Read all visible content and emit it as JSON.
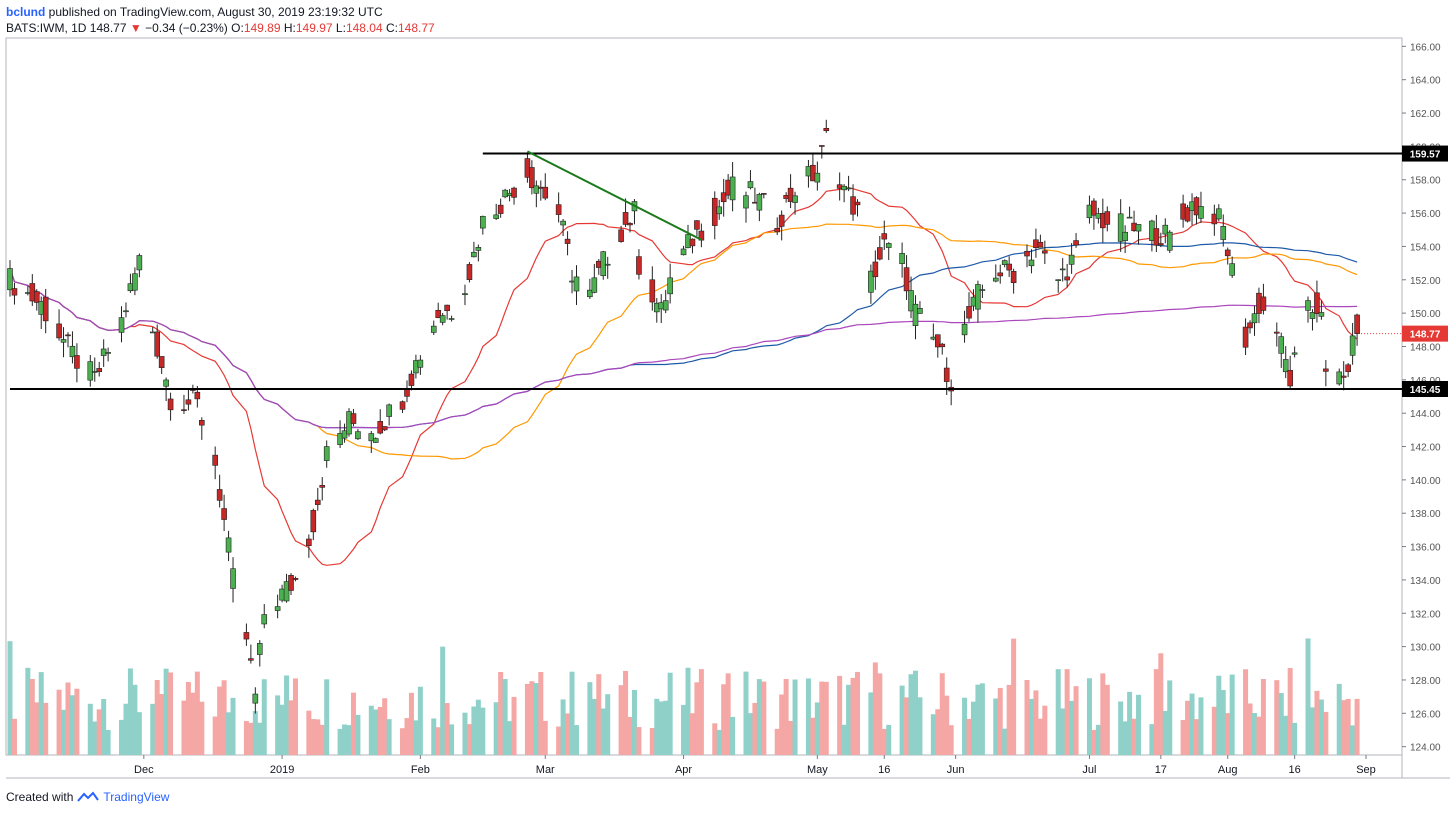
{
  "header": {
    "author": "bclund",
    "published_text": "published on TradingView.com, August 30, 2019 23:19:32 UTC",
    "symbol": "BATS:IWM, 1D",
    "last": "148.77",
    "change": "−0.34 (−0.23%)",
    "open_label": "O:",
    "open": "149.89",
    "high_label": "H:",
    "high": "149.97",
    "low_label": "L:",
    "low": "148.04",
    "close_label": "C:",
    "close": "148.77"
  },
  "footer": {
    "created_with": "Created with",
    "brand": "TradingView"
  },
  "colors": {
    "up": "#4caf50",
    "down": "#c62828",
    "vol_up": "#8fd1c9",
    "vol_down": "#f4a7a4",
    "ma_red": "#e53935",
    "ma_orange": "#ff9800",
    "ma_blue": "#1e5aa8",
    "ma_purple": "#ab47bc",
    "trend_green": "#1b7a1b",
    "last_badge": "#e53935",
    "level_badge": "#000000"
  },
  "chart_data": {
    "type": "candlestick",
    "ylim": [
      123.5,
      166.5
    ],
    "y_ticks": [
      "124.00",
      "126.00",
      "128.00",
      "130.00",
      "132.00",
      "134.00",
      "136.00",
      "138.00",
      "140.00",
      "142.00",
      "144.00",
      "146.00",
      "148.00",
      "150.00",
      "152.00",
      "154.00",
      "156.00",
      "158.00",
      "160.00",
      "162.00",
      "164.00",
      "166.00"
    ],
    "x_ticks": [
      {
        "label": "Dec",
        "date": "2018-12-01"
      },
      {
        "label": "2019",
        "date": "2019-01-01"
      },
      {
        "label": "Feb",
        "date": "2019-02-01"
      },
      {
        "label": "Mar",
        "date": "2019-03-01"
      },
      {
        "label": "Apr",
        "date": "2019-04-01"
      },
      {
        "label": "May",
        "date": "2019-05-01"
      },
      {
        "label": "16",
        "date": "2019-05-16"
      },
      {
        "label": "Jun",
        "date": "2019-06-01"
      },
      {
        "label": "Jul",
        "date": "2019-07-01"
      },
      {
        "label": "17",
        "date": "2019-07-17"
      },
      {
        "label": "Aug",
        "date": "2019-08-01"
      },
      {
        "label": "16",
        "date": "2019-08-16"
      },
      {
        "label": "Sep",
        "date": "2019-09-01"
      }
    ],
    "levels": [
      {
        "name": "resistance",
        "value": 159.57,
        "label": "159.57",
        "from": "2019-02-15"
      },
      {
        "name": "support",
        "value": 145.45,
        "label": "145.45",
        "from": "2018-11-01"
      }
    ],
    "last_price": {
      "value": 148.77,
      "label": "148.77"
    },
    "trendline": {
      "from": {
        "date": "2019-02-25",
        "value": 159.7
      },
      "to": {
        "date": "2019-04-05",
        "value": 154.4
      }
    },
    "closes": [
      {
        "d": "2018-11-01",
        "c": 152.0
      },
      {
        "d": "2018-11-08",
        "c": 150.5
      },
      {
        "d": "2018-11-15",
        "c": 147.5
      },
      {
        "d": "2018-11-20",
        "c": 146.0
      },
      {
        "d": "2018-11-26",
        "c": 149.5
      },
      {
        "d": "2018-11-30",
        "c": 153.2
      },
      {
        "d": "2018-12-03",
        "c": 149.0
      },
      {
        "d": "2018-12-07",
        "c": 145.0
      },
      {
        "d": "2018-12-13",
        "c": 144.5
      },
      {
        "d": "2018-12-17",
        "c": 141.0
      },
      {
        "d": "2018-12-19",
        "c": 137.5
      },
      {
        "d": "2018-12-21",
        "c": 134.0
      },
      {
        "d": "2018-12-24",
        "c": 130.5
      },
      {
        "d": "2018-12-26",
        "c": 127.0
      },
      {
        "d": "2018-12-28",
        "c": 132.0
      },
      {
        "d": "2019-01-04",
        "c": 134.0
      },
      {
        "d": "2019-01-08",
        "c": 137.5
      },
      {
        "d": "2019-01-11",
        "c": 141.5
      },
      {
        "d": "2019-01-16",
        "c": 143.5
      },
      {
        "d": "2019-01-22",
        "c": 143.0
      },
      {
        "d": "2019-01-28",
        "c": 145.0
      },
      {
        "d": "2019-01-31",
        "c": 147.0
      },
      {
        "d": "2019-02-05",
        "c": 150.0
      },
      {
        "d": "2019-02-08",
        "c": 150.2
      },
      {
        "d": "2019-02-12",
        "c": 152.5
      },
      {
        "d": "2019-02-15",
        "c": 155.5
      },
      {
        "d": "2019-02-20",
        "c": 157.0
      },
      {
        "d": "2019-02-25",
        "c": 158.5
      },
      {
        "d": "2019-02-28",
        "c": 157.5
      },
      {
        "d": "2019-03-04",
        "c": 156.0
      },
      {
        "d": "2019-03-07",
        "c": 152.5
      },
      {
        "d": "2019-03-11",
        "c": 151.0
      },
      {
        "d": "2019-03-14",
        "c": 153.0
      },
      {
        "d": "2019-03-18",
        "c": 155.0
      },
      {
        "d": "2019-03-21",
        "c": 156.0
      },
      {
        "d": "2019-03-22",
        "c": 153.0
      },
      {
        "d": "2019-03-27",
        "c": 150.0
      },
      {
        "d": "2019-03-29",
        "c": 152.0
      },
      {
        "d": "2019-04-03",
        "c": 154.5
      },
      {
        "d": "2019-04-08",
        "c": 156.0
      },
      {
        "d": "2019-04-12",
        "c": 157.5
      },
      {
        "d": "2019-04-17",
        "c": 157.0
      },
      {
        "d": "2019-04-22",
        "c": 155.5
      },
      {
        "d": "2019-04-26",
        "c": 157.5
      },
      {
        "d": "2019-05-01",
        "c": 158.5
      },
      {
        "d": "2019-05-03",
        "c": 160.5
      },
      {
        "d": "2019-05-07",
        "c": 157.5
      },
      {
        "d": "2019-05-10",
        "c": 156.0
      },
      {
        "d": "2019-05-13",
        "c": 152.0
      },
      {
        "d": "2019-05-16",
        "c": 154.0
      },
      {
        "d": "2019-05-20",
        "c": 153.0
      },
      {
        "d": "2019-05-23",
        "c": 150.0
      },
      {
        "d": "2019-05-28",
        "c": 148.0
      },
      {
        "d": "2019-05-31",
        "c": 146.0
      },
      {
        "d": "2019-06-03",
        "c": 149.0
      },
      {
        "d": "2019-06-06",
        "c": 151.0
      },
      {
        "d": "2019-06-10",
        "c": 152.5
      },
      {
        "d": "2019-06-14",
        "c": 152.5
      },
      {
        "d": "2019-06-19",
        "c": 154.0
      },
      {
        "d": "2019-06-24",
        "c": 152.0
      },
      {
        "d": "2019-06-28",
        "c": 153.5
      },
      {
        "d": "2019-07-01",
        "c": 156.0
      },
      {
        "d": "2019-07-05",
        "c": 155.5
      },
      {
        "d": "2019-07-10",
        "c": 155.0
      },
      {
        "d": "2019-07-15",
        "c": 155.0
      },
      {
        "d": "2019-07-19",
        "c": 154.5
      },
      {
        "d": "2019-07-24",
        "c": 156.5
      },
      {
        "d": "2019-07-29",
        "c": 156.0
      },
      {
        "d": "2019-07-31",
        "c": 155.0
      },
      {
        "d": "2019-08-02",
        "c": 152.5
      },
      {
        "d": "2019-08-05",
        "c": 148.5
      },
      {
        "d": "2019-08-08",
        "c": 150.5
      },
      {
        "d": "2019-08-12",
        "c": 149.0
      },
      {
        "d": "2019-08-15",
        "c": 146.0
      },
      {
        "d": "2019-08-19",
        "c": 150.0
      },
      {
        "d": "2019-08-22",
        "c": 150.5
      },
      {
        "d": "2019-08-23",
        "c": 146.0
      },
      {
        "d": "2019-08-27",
        "c": 146.0
      },
      {
        "d": "2019-08-30",
        "c": 148.77
      }
    ]
  }
}
